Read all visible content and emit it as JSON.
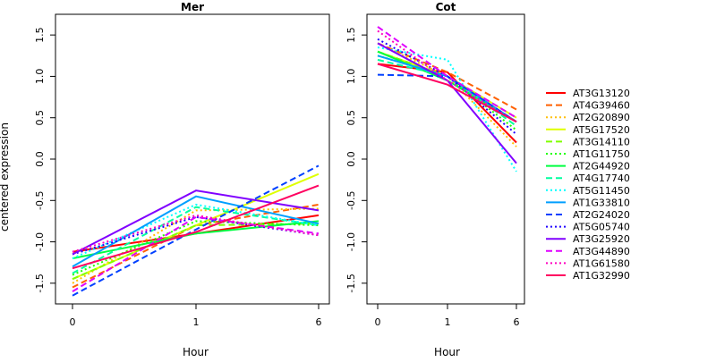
{
  "chart_data": {
    "type": "line",
    "x_categories": [
      "0",
      "1",
      "6"
    ],
    "xlabel": "Hour",
    "ylabel": "centered expression",
    "ylim": [
      -1.75,
      1.75
    ],
    "y_ticks": [
      "-1.5",
      "-1.0",
      "-0.5",
      "0.0",
      "0.5",
      "1.0",
      "1.5"
    ],
    "grid": false,
    "legend_position": "right",
    "panels": [
      {
        "title": "Mer",
        "series": [
          {
            "name": "AT3G13120",
            "values": [
              -1.12,
              -0.9,
              -0.68
            ]
          },
          {
            "name": "AT4G39460",
            "values": [
              -1.55,
              -0.8,
              -0.55
            ]
          },
          {
            "name": "AT2G20890",
            "values": [
              -1.5,
              -0.62,
              -0.6
            ]
          },
          {
            "name": "AT5G17520",
            "values": [
              -1.45,
              -0.8,
              -0.18
            ]
          },
          {
            "name": "AT3G14110",
            "values": [
              -1.45,
              -0.8,
              -0.78
            ]
          },
          {
            "name": "AT1G11750",
            "values": [
              -1.4,
              -0.75,
              -0.8
            ]
          },
          {
            "name": "AT2G44920",
            "values": [
              -1.2,
              -0.9,
              -0.75
            ]
          },
          {
            "name": "AT4G17740",
            "values": [
              -1.38,
              -0.58,
              -0.8
            ]
          },
          {
            "name": "AT5G11450",
            "values": [
              -1.2,
              -0.55,
              -0.8
            ]
          },
          {
            "name": "AT1G33810",
            "values": [
              -1.3,
              -0.45,
              -0.78
            ]
          },
          {
            "name": "AT2G24020",
            "values": [
              -1.65,
              -0.85,
              -0.08
            ]
          },
          {
            "name": "AT5G05740",
            "values": [
              -1.15,
              -0.7,
              -0.92
            ]
          },
          {
            "name": "AT3G25920",
            "values": [
              -1.15,
              -0.38,
              -0.62
            ]
          },
          {
            "name": "AT3G44890",
            "values": [
              -1.6,
              -0.7,
              -0.9
            ]
          },
          {
            "name": "AT1G61580",
            "values": [
              -1.12,
              -0.68,
              -0.92
            ]
          },
          {
            "name": "AT1G32990",
            "values": [
              -1.32,
              -0.88,
              -0.32
            ]
          }
        ]
      },
      {
        "title": "Cot",
        "series": [
          {
            "name": "AT3G13120",
            "values": [
              1.15,
              1.05,
              0.2
            ]
          },
          {
            "name": "AT4G39460",
            "values": [
              1.4,
              1.05,
              0.6
            ]
          },
          {
            "name": "AT2G20890",
            "values": [
              1.4,
              1.0,
              0.15
            ]
          },
          {
            "name": "AT5G17520",
            "values": [
              1.3,
              1.0,
              0.5
            ]
          },
          {
            "name": "AT3G14110",
            "values": [
              1.3,
              1.0,
              0.45
            ]
          },
          {
            "name": "AT1G11750",
            "values": [
              1.25,
              1.0,
              0.35
            ]
          },
          {
            "name": "AT2G44920",
            "values": [
              1.3,
              0.95,
              0.45
            ]
          },
          {
            "name": "AT4G17740",
            "values": [
              1.2,
              1.0,
              0.4
            ]
          },
          {
            "name": "AT5G11450",
            "values": [
              1.35,
              1.2,
              -0.15
            ]
          },
          {
            "name": "AT1G33810",
            "values": [
              1.25,
              1.0,
              0.45
            ]
          },
          {
            "name": "AT2G24020",
            "values": [
              1.02,
              1.0,
              0.45
            ]
          },
          {
            "name": "AT5G05740",
            "values": [
              1.45,
              1.0,
              0.3
            ]
          },
          {
            "name": "AT3G25920",
            "values": [
              1.4,
              0.95,
              -0.05
            ]
          },
          {
            "name": "AT3G44890",
            "values": [
              1.6,
              1.0,
              0.5
            ]
          },
          {
            "name": "AT1G61580",
            "values": [
              1.55,
              0.95,
              0.45
            ]
          },
          {
            "name": "AT1G32990",
            "values": [
              1.15,
              0.9,
              0.45
            ]
          }
        ]
      }
    ],
    "legend": [
      {
        "name": "AT3G13120",
        "color": "#ff0000",
        "dash": "solid"
      },
      {
        "name": "AT4G39460",
        "color": "#ff6000",
        "dash": "dashed"
      },
      {
        "name": "AT2G20890",
        "color": "#ffbf00",
        "dash": "dotted"
      },
      {
        "name": "AT5G17520",
        "color": "#dfff00",
        "dash": "solid"
      },
      {
        "name": "AT3G14110",
        "color": "#80ff00",
        "dash": "dashed"
      },
      {
        "name": "AT1G11750",
        "color": "#20ff00",
        "dash": "dotted"
      },
      {
        "name": "AT2G44920",
        "color": "#00ff40",
        "dash": "solid"
      },
      {
        "name": "AT4G17740",
        "color": "#00ff9f",
        "dash": "dashed"
      },
      {
        "name": "AT5G11450",
        "color": "#00ffff",
        "dash": "dotted"
      },
      {
        "name": "AT1G33810",
        "color": "#009fff",
        "dash": "solid"
      },
      {
        "name": "AT2G24020",
        "color": "#0040ff",
        "dash": "dashed"
      },
      {
        "name": "AT5G05740",
        "color": "#2000ff",
        "dash": "dotted"
      },
      {
        "name": "AT3G25920",
        "color": "#8000ff",
        "dash": "solid"
      },
      {
        "name": "AT3G44890",
        "color": "#df00ff",
        "dash": "dashed"
      },
      {
        "name": "AT1G61580",
        "color": "#ff00bf",
        "dash": "dotted"
      },
      {
        "name": "AT1G32990",
        "color": "#ff0060",
        "dash": "solid"
      }
    ]
  }
}
